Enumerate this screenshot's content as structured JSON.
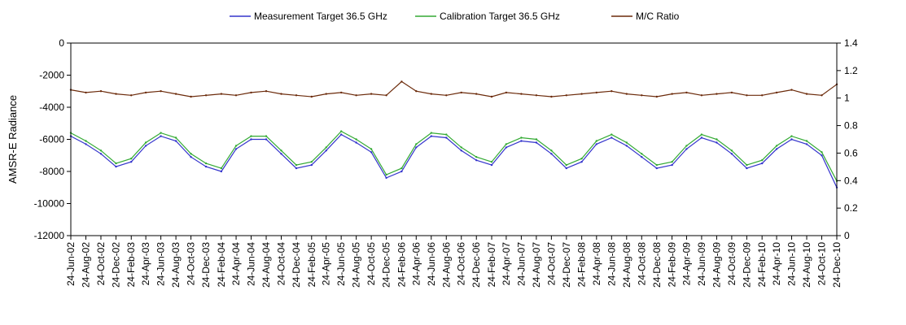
{
  "chart_data": {
    "type": "line",
    "title": "",
    "ylabel": "AMSR-E Radiance",
    "y2label": "",
    "ylim": [
      -12000,
      0
    ],
    "y2lim": [
      0,
      1.4
    ],
    "yticks": [
      0,
      -2000,
      -4000,
      -6000,
      -8000,
      -10000,
      -12000
    ],
    "y2ticks": [
      1.4,
      1.2,
      1,
      0.8,
      0.6,
      0.4,
      0.2,
      0
    ],
    "xlim": [
      "2002-06-24",
      "2010-12-24"
    ],
    "grid": false,
    "legend_position": "top",
    "x_tick_labels": [
      "24-Jun-02",
      "24-Aug-02",
      "24-Oct-02",
      "24-Dec-02",
      "24-Feb-03",
      "24-Apr-03",
      "24-Jun-03",
      "24-Aug-03",
      "24-Oct-03",
      "24-Dec-03",
      "24-Feb-04",
      "24-Apr-04",
      "24-Jun-04",
      "24-Aug-04",
      "24-Oct-04",
      "24-Dec-04",
      "24-Feb-05",
      "24-Apr-05",
      "24-Jun-05",
      "24-Aug-05",
      "24-Oct-05",
      "24-Dec-05",
      "24-Feb-06",
      "24-Apr-06",
      "24-Jun-06",
      "24-Aug-06",
      "24-Oct-06",
      "24-Dec-06",
      "24-Feb-07",
      "24-Apr-07",
      "24-Jun-07",
      "24-Aug-07",
      "24-Oct-07",
      "24-Dec-07",
      "24-Feb-08",
      "24-Apr-08",
      "24-Jun-08",
      "24-Aug-08",
      "24-Oct-08",
      "24-Dec-08",
      "24-Feb-09",
      "24-Apr-09",
      "24-Jun-09",
      "24-Aug-09",
      "24-Oct-09",
      "24-Dec-09",
      "24-Feb-10",
      "24-Apr-10",
      "24-Jun-10",
      "24-Aug-10",
      "24-Oct-10",
      "24-Dec-10"
    ],
    "x": [
      "2002-06-24",
      "2002-08-24",
      "2002-10-24",
      "2002-12-24",
      "2003-02-24",
      "2003-04-24",
      "2003-06-24",
      "2003-08-24",
      "2003-10-24",
      "2003-12-24",
      "2004-02-24",
      "2004-04-24",
      "2004-06-24",
      "2004-08-24",
      "2004-10-24",
      "2004-12-24",
      "2005-02-24",
      "2005-04-24",
      "2005-06-24",
      "2005-08-24",
      "2005-10-24",
      "2005-12-24",
      "2006-02-24",
      "2006-04-24",
      "2006-06-24",
      "2006-08-24",
      "2006-10-24",
      "2006-12-24",
      "2007-02-24",
      "2007-04-24",
      "2007-06-24",
      "2007-08-24",
      "2007-10-24",
      "2007-12-24",
      "2008-02-24",
      "2008-04-24",
      "2008-06-24",
      "2008-08-24",
      "2008-10-24",
      "2008-12-24",
      "2009-02-24",
      "2009-04-24",
      "2009-06-24",
      "2009-08-24",
      "2009-10-24",
      "2009-12-24",
      "2010-02-24",
      "2010-04-24",
      "2010-06-24",
      "2010-08-24",
      "2010-10-24",
      "2010-12-24"
    ],
    "series": [
      {
        "name": "Measurement Target 36.5 GHz",
        "axis": "left",
        "color": "#3333cc",
        "values": [
          -5800,
          -6300,
          -6900,
          -7700,
          -7400,
          -6400,
          -5800,
          -6100,
          -7100,
          -7700,
          -8000,
          -6600,
          -6000,
          -6000,
          -6900,
          -7800,
          -7600,
          -6700,
          -5700,
          -6200,
          -6800,
          -8400,
          -8000,
          -6500,
          -5800,
          -5900,
          -6700,
          -7300,
          -7600,
          -6500,
          -6100,
          -6200,
          -6900,
          -7800,
          -7400,
          -6300,
          -5900,
          -6400,
          -7100,
          -7800,
          -7600,
          -6600,
          -5900,
          -6200,
          -6900,
          -7800,
          -7500,
          -6600,
          -6000,
          -6300,
          -7000,
          -9000
        ]
      },
      {
        "name": "Calibration Target 36.5 GHz",
        "axis": "left",
        "color": "#33aa33",
        "values": [
          -5600,
          -6100,
          -6700,
          -7500,
          -7200,
          -6200,
          -5600,
          -5900,
          -6900,
          -7500,
          -7800,
          -6400,
          -5800,
          -5800,
          -6700,
          -7600,
          -7400,
          -6500,
          -5500,
          -6000,
          -6600,
          -8200,
          -7800,
          -6300,
          -5600,
          -5700,
          -6500,
          -7100,
          -7400,
          -6300,
          -5900,
          -6000,
          -6700,
          -7600,
          -7200,
          -6100,
          -5700,
          -6200,
          -6900,
          -7600,
          -7400,
          -6400,
          -5700,
          -6000,
          -6700,
          -7600,
          -7300,
          -6400,
          -5800,
          -6100,
          -6800,
          -8600
        ]
      },
      {
        "name": "M/C Ratio",
        "axis": "right",
        "color": "#6b2a0a",
        "values": [
          1.06,
          1.04,
          1.05,
          1.03,
          1.02,
          1.04,
          1.05,
          1.03,
          1.01,
          1.02,
          1.03,
          1.02,
          1.04,
          1.05,
          1.03,
          1.02,
          1.01,
          1.03,
          1.04,
          1.02,
          1.03,
          1.02,
          1.12,
          1.05,
          1.03,
          1.02,
          1.04,
          1.03,
          1.01,
          1.04,
          1.03,
          1.02,
          1.01,
          1.02,
          1.03,
          1.04,
          1.05,
          1.03,
          1.02,
          1.01,
          1.03,
          1.04,
          1.02,
          1.03,
          1.04,
          1.02,
          1.02,
          1.04,
          1.06,
          1.03,
          1.02,
          1.1
        ]
      }
    ]
  }
}
